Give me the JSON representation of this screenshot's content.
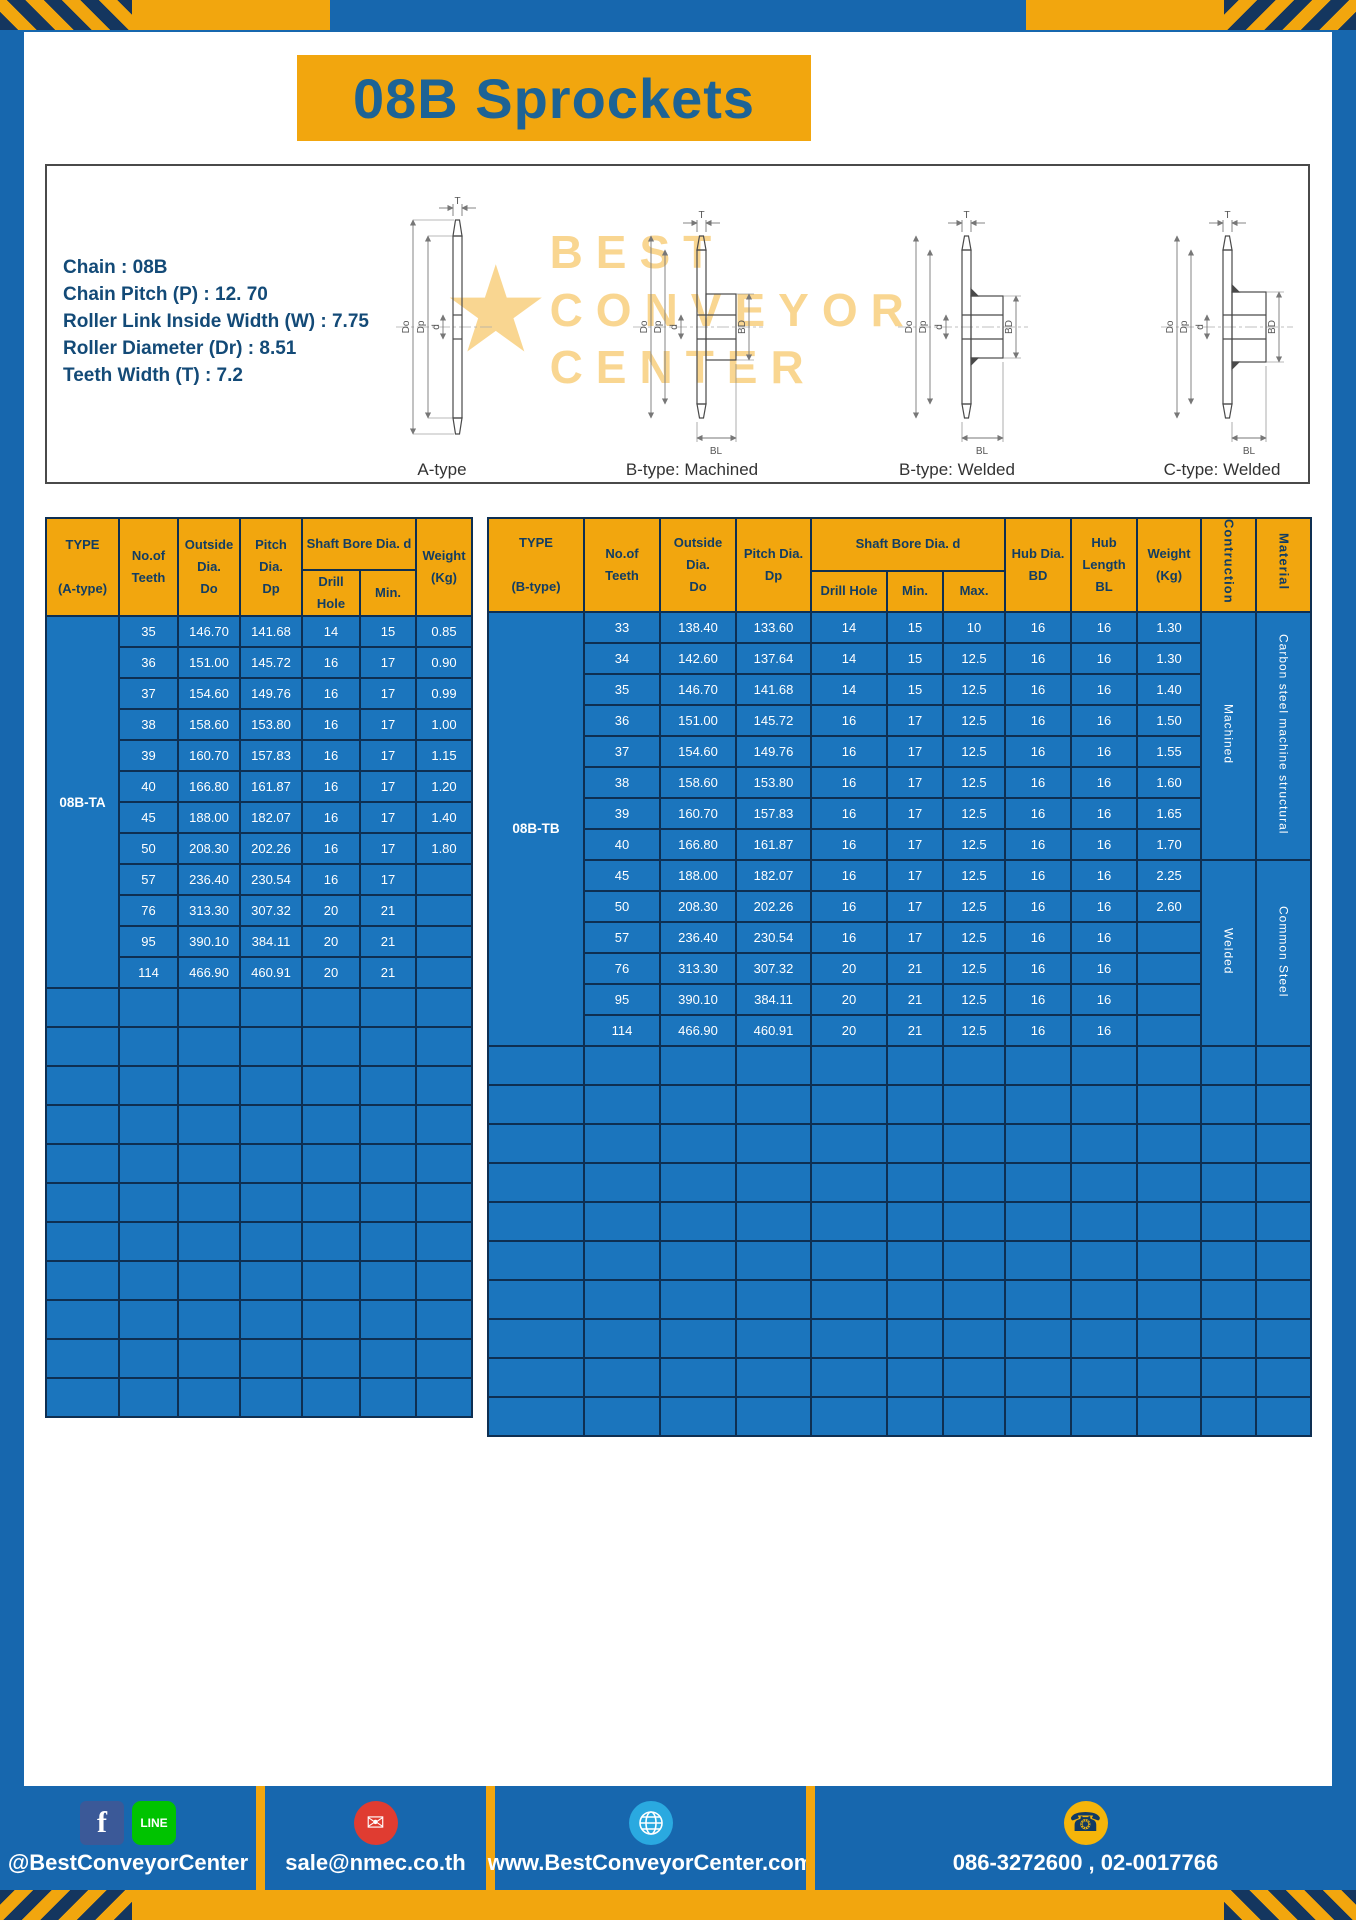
{
  "title": "08B Sprockets",
  "colors": {
    "frame_blue": "#1767ae",
    "table_blue": "#1b75bd",
    "accent_yellow": "#f2a60e",
    "border_navy": "#0e2f52",
    "heading_blue": "#1d6395"
  },
  "specs": [
    "Chain : 08B",
    "Chain Pitch (P) : 12. 70",
    "Roller Link Inside Width (W) : 7.75",
    "Roller Diameter (Dr) : 8.51",
    "Teeth Width (T) : 7.2"
  ],
  "watermark": {
    "star": "★",
    "line1": "BEST",
    "line2": "CONVEYOR",
    "line3": "CENTER"
  },
  "diagram_dims": {
    "t": "T",
    "do_label": "Do",
    "dp": "Dp",
    "d": "d",
    "bd": "BD",
    "bl": "BL"
  },
  "diagrams": [
    {
      "label": "A-type"
    },
    {
      "label": "B-type: Machined"
    },
    {
      "label": "B-type: Welded"
    },
    {
      "label": "C-type: Welded"
    }
  ],
  "table_a": {
    "headers": {
      "type": "TYPE\n\n(A-type)",
      "teeth": "No.of\nTeeth",
      "outside": "Outside\nDia.\nDo",
      "pitch": "Pitch Dia.\nDp",
      "shaft_bore": "Shaft Bore Dia. d",
      "drill": "Drill Hole",
      "min": "Min.",
      "weight": "Weight\n(Kg)"
    },
    "type_value": "08B-TA",
    "rows": [
      [
        "35",
        "146.70",
        "141.68",
        "14",
        "15",
        "0.85"
      ],
      [
        "36",
        "151.00",
        "145.72",
        "16",
        "17",
        "0.90"
      ],
      [
        "37",
        "154.60",
        "149.76",
        "16",
        "17",
        "0.99"
      ],
      [
        "38",
        "158.60",
        "153.80",
        "16",
        "17",
        "1.00"
      ],
      [
        "39",
        "160.70",
        "157.83",
        "16",
        "17",
        "1.15"
      ],
      [
        "40",
        "166.80",
        "161.87",
        "16",
        "17",
        "1.20"
      ],
      [
        "45",
        "188.00",
        "182.07",
        "16",
        "17",
        "1.40"
      ],
      [
        "50",
        "208.30",
        "202.26",
        "16",
        "17",
        "1.80"
      ],
      [
        "57",
        "236.40",
        "230.54",
        "16",
        "17",
        ""
      ],
      [
        "76",
        "313.30",
        "307.32",
        "20",
        "21",
        ""
      ],
      [
        "95",
        "390.10",
        "384.11",
        "20",
        "21",
        ""
      ],
      [
        "114",
        "466.90",
        "460.91",
        "20",
        "21",
        ""
      ]
    ],
    "empty_rows": 11
  },
  "table_b": {
    "headers": {
      "type": "TYPE\n\n(B-type)",
      "teeth": "No.of\nTeeth",
      "outside": "Outside\nDia.\nDo",
      "pitch": "Pitch Dia.\nDp",
      "shaft_bore": "Shaft Bore Dia. d",
      "drill": "Drill Hole",
      "min": "Min.",
      "max": "Max.",
      "hub_dia": "Hub Dia.\nBD",
      "hub_length": "Hub\nLength\nBL",
      "weight": "Weight\n(Kg)",
      "construction": "Contruction",
      "material": "Material"
    },
    "type_value": "08B-TB",
    "rows": [
      [
        "33",
        "138.40",
        "133.60",
        "14",
        "15",
        "10",
        "16",
        "16",
        "1.30"
      ],
      [
        "34",
        "142.60",
        "137.64",
        "14",
        "15",
        "12.5",
        "16",
        "16",
        "1.30"
      ],
      [
        "35",
        "146.70",
        "141.68",
        "14",
        "15",
        "12.5",
        "16",
        "16",
        "1.40"
      ],
      [
        "36",
        "151.00",
        "145.72",
        "16",
        "17",
        "12.5",
        "16",
        "16",
        "1.50"
      ],
      [
        "37",
        "154.60",
        "149.76",
        "16",
        "17",
        "12.5",
        "16",
        "16",
        "1.55"
      ],
      [
        "38",
        "158.60",
        "153.80",
        "16",
        "17",
        "12.5",
        "16",
        "16",
        "1.60"
      ],
      [
        "39",
        "160.70",
        "157.83",
        "16",
        "17",
        "12.5",
        "16",
        "16",
        "1.65"
      ],
      [
        "40",
        "166.80",
        "161.87",
        "16",
        "17",
        "12.5",
        "16",
        "16",
        "1.70"
      ],
      [
        "45",
        "188.00",
        "182.07",
        "16",
        "17",
        "12.5",
        "16",
        "16",
        "2.25"
      ],
      [
        "50",
        "208.30",
        "202.26",
        "16",
        "17",
        "12.5",
        "16",
        "16",
        "2.60"
      ],
      [
        "57",
        "236.40",
        "230.54",
        "16",
        "17",
        "12.5",
        "16",
        "16",
        ""
      ],
      [
        "76",
        "313.30",
        "307.32",
        "20",
        "21",
        "12.5",
        "16",
        "16",
        ""
      ],
      [
        "95",
        "390.10",
        "384.11",
        "20",
        "21",
        "12.5",
        "16",
        "16",
        ""
      ],
      [
        "114",
        "466.90",
        "460.91",
        "20",
        "21",
        "12.5",
        "16",
        "16",
        ""
      ]
    ],
    "construction_groups": [
      {
        "label": "Machined",
        "span": 8
      },
      {
        "label": "Welded",
        "span": 6
      }
    ],
    "material_groups": [
      {
        "label": "Carbon steel  machine structural",
        "span": 8
      },
      {
        "label": "Common  Steel",
        "span": 6
      }
    ],
    "empty_rows": 10
  },
  "footer": {
    "fb_glyph": "f",
    "line_glyph": "LINE",
    "mail_glyph": "✉",
    "phone_glyph": "☎",
    "facebook_handle": "@BestConveyorCenter",
    "email": "sale@nmec.co.th",
    "website": "www.BestConveyorCenter.com",
    "phone": "086-3272600 , 02-0017766"
  }
}
